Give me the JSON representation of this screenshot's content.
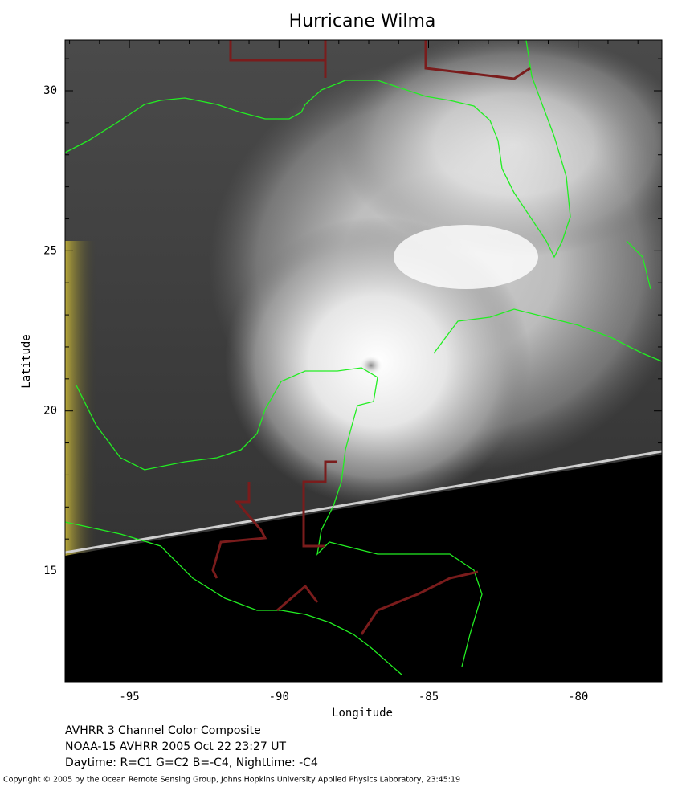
{
  "chart_data": {
    "type": "map",
    "title": "Hurricane Wilma",
    "xlabel": "Longitude",
    "ylabel": "Latitude",
    "xlim": [
      -97.15,
      -77.2
    ],
    "ylim": [
      11.54,
      31.58
    ],
    "xticks": [
      -95,
      -90,
      -85,
      -80
    ],
    "yticks": [
      15,
      20,
      25,
      30
    ],
    "xminorticks": [
      -97,
      -96,
      -94,
      -93,
      -92,
      -91,
      -89,
      -88,
      -87,
      -86,
      -84,
      -83,
      -82,
      -81,
      -79,
      -78
    ],
    "yminorticks": [
      12,
      13,
      14,
      16,
      17,
      18,
      19,
      21,
      22,
      23,
      24,
      26,
      27,
      28,
      29,
      31
    ]
  },
  "caption": [
    "AVHRR 3 Channel Color Composite",
    "NOAA-15 AVHRR 2005 Oct 22 23:27 UT",
    "Daytime: R=C1 G=C2 B=-C4, Nighttime: -C4"
  ],
  "copyright": "Copyright © 2005 by the Ocean Remote Sensing Group, Johns Hopkins University Applied Physics Laboratory, 23:45:19"
}
